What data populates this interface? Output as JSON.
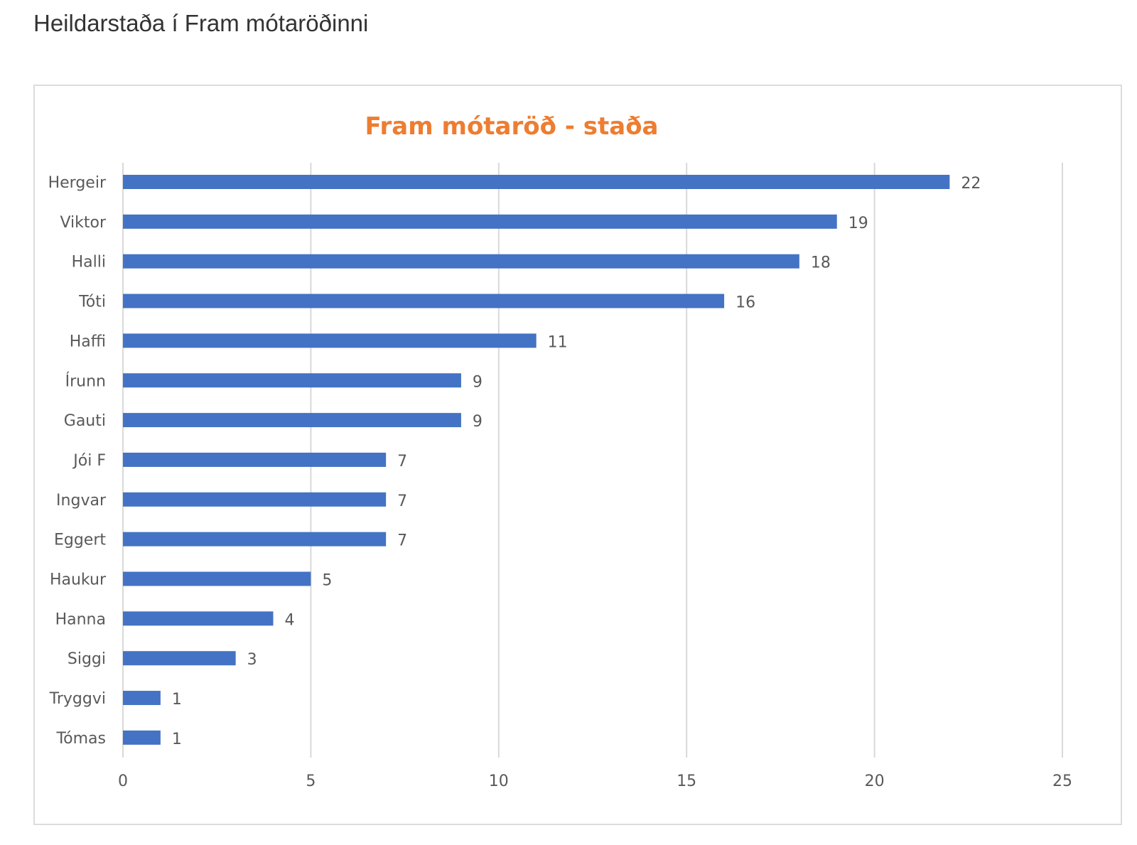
{
  "page": {
    "heading": "Heildarstaða í Fram mótaröðinni"
  },
  "colors": {
    "bar": "#4472c4",
    "title": "#ed7d31",
    "grid": "#d9d9d9",
    "text": "#595959"
  },
  "chart_data": {
    "type": "bar",
    "orientation": "horizontal",
    "title": "Fram mótaröð - staða",
    "categories": [
      "Hergeir",
      "Viktor",
      "Halli",
      "Tóti",
      "Haffi",
      "Írunn",
      "Gauti",
      "Jói F",
      "Ingvar",
      "Eggert",
      "Haukur",
      "Hanna",
      "Siggi",
      "Tryggvi",
      "Tómas"
    ],
    "values": [
      22,
      19,
      18,
      16,
      11,
      9,
      9,
      7,
      7,
      7,
      5,
      4,
      3,
      1,
      1
    ],
    "xlim": [
      0,
      25
    ],
    "xticks": [
      0,
      5,
      10,
      15,
      20,
      25
    ],
    "xticks_labels": [
      "0",
      "5",
      "10",
      "15",
      "20",
      "25"
    ],
    "value_labels": [
      "22",
      "19",
      "18",
      "16",
      "11",
      "9",
      "9",
      "7",
      "7",
      "7",
      "5",
      "4",
      "3",
      "1",
      "1"
    ],
    "grid": true,
    "legend": "none"
  }
}
